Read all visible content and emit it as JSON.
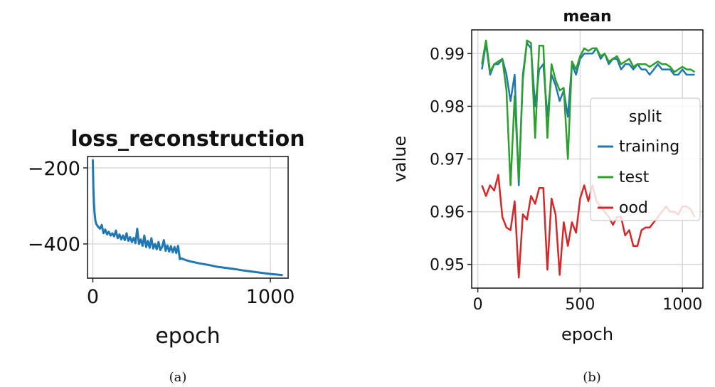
{
  "chart_data": [
    {
      "type": "line",
      "title": "loss_reconstruction",
      "xlabel": "epoch",
      "ylabel": "",
      "xlim": [
        -30,
        1100
      ],
      "ylim": [
        -490,
        -170
      ],
      "xticks": [
        0,
        1000
      ],
      "yticks": [
        -200,
        -400
      ],
      "grid": true,
      "caption": "(a)",
      "series": [
        {
          "color": "#1f77b4",
          "x": [
            0,
            3,
            6,
            10,
            15,
            20,
            30,
            40,
            50,
            60,
            70,
            80,
            90,
            100,
            110,
            120,
            130,
            140,
            150,
            160,
            170,
            180,
            190,
            200,
            210,
            220,
            230,
            240,
            250,
            255,
            260,
            270,
            280,
            290,
            300,
            310,
            320,
            330,
            340,
            350,
            360,
            370,
            380,
            390,
            400,
            410,
            420,
            430,
            440,
            450,
            460,
            470,
            480,
            490,
            500,
            520,
            550,
            600,
            650,
            700,
            750,
            800,
            850,
            900,
            950,
            1000,
            1050,
            1070
          ],
          "y": [
            -178,
            -250,
            -290,
            -320,
            -340,
            -348,
            -355,
            -360,
            -350,
            -372,
            -362,
            -375,
            -368,
            -378,
            -372,
            -380,
            -365,
            -385,
            -375,
            -388,
            -378,
            -390,
            -372,
            -392,
            -382,
            -395,
            -384,
            -398,
            -360,
            -380,
            -400,
            -388,
            -405,
            -378,
            -408,
            -392,
            -410,
            -385,
            -412,
            -400,
            -414,
            -395,
            -416,
            -408,
            -390,
            -418,
            -404,
            -420,
            -406,
            -422,
            -408,
            -424,
            -405,
            -440,
            -438,
            -442,
            -446,
            -451,
            -455,
            -460,
            -463,
            -466,
            -470,
            -473,
            -476,
            -479,
            -481,
            -482
          ]
        }
      ]
    },
    {
      "type": "line",
      "title": "mean",
      "xlabel": "epoch",
      "ylabel": "value",
      "xlim": [
        -30,
        1100
      ],
      "ylim": [
        0.9455,
        0.9945
      ],
      "xticks": [
        0,
        500,
        1000
      ],
      "yticks": [
        0.95,
        0.96,
        0.97,
        0.98,
        0.99
      ],
      "ytick_labels": [
        "0.95",
        "0.96",
        "0.97",
        "0.98",
        "0.99"
      ],
      "grid": true,
      "caption": "(b)",
      "legend": {
        "title": "split",
        "placement": "right",
        "entries": [
          "training",
          "test",
          "ood"
        ]
      },
      "series": [
        {
          "name": "training",
          "color": "#1f77b4",
          "x": [
            20,
            40,
            60,
            80,
            100,
            120,
            140,
            160,
            180,
            200,
            220,
            240,
            260,
            280,
            300,
            320,
            340,
            360,
            380,
            400,
            420,
            440,
            460,
            480,
            500,
            520,
            540,
            560,
            580,
            600,
            620,
            640,
            660,
            680,
            700,
            720,
            740,
            760,
            780,
            800,
            820,
            840,
            860,
            880,
            900,
            920,
            940,
            960,
            980,
            1000,
            1020,
            1040,
            1060
          ],
          "y": [
            0.987,
            0.992,
            0.986,
            0.988,
            0.988,
            0.989,
            0.986,
            0.981,
            0.986,
            0.965,
            0.986,
            0.992,
            0.991,
            0.98,
            0.987,
            0.988,
            0.978,
            0.986,
            0.984,
            0.981,
            0.983,
            0.978,
            0.988,
            0.986,
            0.989,
            0.99,
            0.99,
            0.99,
            0.991,
            0.989,
            0.99,
            0.988,
            0.989,
            0.989,
            0.987,
            0.988,
            0.988,
            0.987,
            0.988,
            0.987,
            0.987,
            0.986,
            0.987,
            0.988,
            0.987,
            0.987,
            0.987,
            0.986,
            0.986,
            0.987,
            0.986,
            0.986,
            0.986
          ]
        },
        {
          "name": "test",
          "color": "#2ca02c",
          "x": [
            20,
            40,
            60,
            80,
            100,
            120,
            140,
            160,
            180,
            200,
            220,
            240,
            260,
            280,
            300,
            320,
            340,
            360,
            380,
            400,
            420,
            440,
            460,
            480,
            500,
            520,
            540,
            560,
            580,
            600,
            620,
            640,
            660,
            680,
            700,
            720,
            740,
            760,
            780,
            800,
            820,
            840,
            860,
            880,
            900,
            920,
            940,
            960,
            980,
            1000,
            1020,
            1040,
            1060
          ],
          "y": [
            0.988,
            0.9925,
            0.9865,
            0.988,
            0.9885,
            0.989,
            0.983,
            0.965,
            0.982,
            0.966,
            0.985,
            0.9925,
            0.992,
            0.974,
            0.9915,
            0.9915,
            0.974,
            0.988,
            0.985,
            0.983,
            0.9835,
            0.97,
            0.9885,
            0.987,
            0.9895,
            0.991,
            0.9905,
            0.991,
            0.991,
            0.9895,
            0.99,
            0.9885,
            0.989,
            0.9895,
            0.988,
            0.9885,
            0.989,
            0.9875,
            0.988,
            0.988,
            0.988,
            0.9875,
            0.988,
            0.9885,
            0.988,
            0.988,
            0.9875,
            0.9865,
            0.987,
            0.9875,
            0.987,
            0.987,
            0.9865
          ]
        },
        {
          "name": "ood",
          "color": "#d62728",
          "x": [
            20,
            40,
            60,
            80,
            100,
            120,
            140,
            160,
            180,
            200,
            220,
            240,
            260,
            280,
            300,
            320,
            340,
            360,
            380,
            400,
            420,
            440,
            460,
            480,
            500,
            520,
            540,
            560,
            580,
            600,
            620,
            640,
            660,
            680,
            700,
            720,
            740,
            760,
            780,
            800,
            820,
            840,
            860,
            880,
            900,
            920,
            940,
            960,
            980,
            1000,
            1020,
            1040,
            1060
          ],
          "y": [
            0.965,
            0.963,
            0.965,
            0.964,
            0.967,
            0.959,
            0.957,
            0.9565,
            0.962,
            0.9475,
            0.9595,
            0.9585,
            0.963,
            0.9615,
            0.9645,
            0.9645,
            0.949,
            0.9625,
            0.9595,
            0.948,
            0.958,
            0.9535,
            0.958,
            0.956,
            0.9625,
            0.965,
            0.962,
            0.965,
            0.962,
            0.961,
            0.96,
            0.959,
            0.9575,
            0.959,
            0.959,
            0.9555,
            0.9565,
            0.9535,
            0.9535,
            0.9565,
            0.957,
            0.957,
            0.958,
            0.959,
            0.96,
            0.961,
            0.96,
            0.96,
            0.9595,
            0.961,
            0.961,
            0.9605,
            0.959
          ]
        }
      ]
    }
  ]
}
